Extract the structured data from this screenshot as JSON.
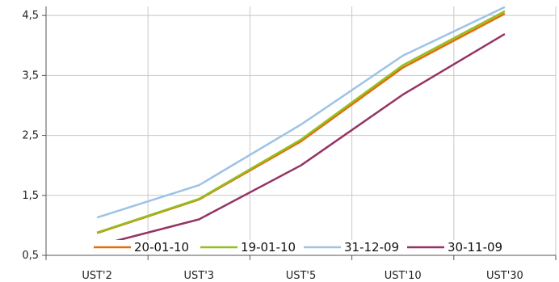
{
  "chart_data": {
    "type": "line",
    "title": "",
    "xlabel": "",
    "ylabel": "",
    "categories": [
      "UST'2",
      "UST'3",
      "UST'5",
      "UST'10",
      "UST'30"
    ],
    "ylim": [
      0.5,
      4.65
    ],
    "yticks": [
      {
        "value": 0.5,
        "label": "0,5"
      },
      {
        "value": 1.5,
        "label": "1,5"
      },
      {
        "value": 2.5,
        "label": "2,5"
      },
      {
        "value": 3.5,
        "label": "3,5"
      },
      {
        "value": 4.5,
        "label": "4,5"
      }
    ],
    "grid": true,
    "legend_position": "bottom",
    "series": [
      {
        "name": "20-01-10",
        "color": "#E46C0A",
        "values": [
          0.87,
          1.43,
          2.4,
          3.63,
          4.53
        ]
      },
      {
        "name": "19-01-10",
        "color": "#92C020",
        "values": [
          0.88,
          1.44,
          2.43,
          3.67,
          4.57
        ]
      },
      {
        "name": "31-12-09",
        "color": "#9DC3E6",
        "values": [
          1.13,
          1.67,
          2.68,
          3.83,
          4.64
        ]
      },
      {
        "name": "30-11-09",
        "color": "#953464",
        "values": [
          0.66,
          1.1,
          2.0,
          3.18,
          4.19
        ]
      }
    ]
  }
}
